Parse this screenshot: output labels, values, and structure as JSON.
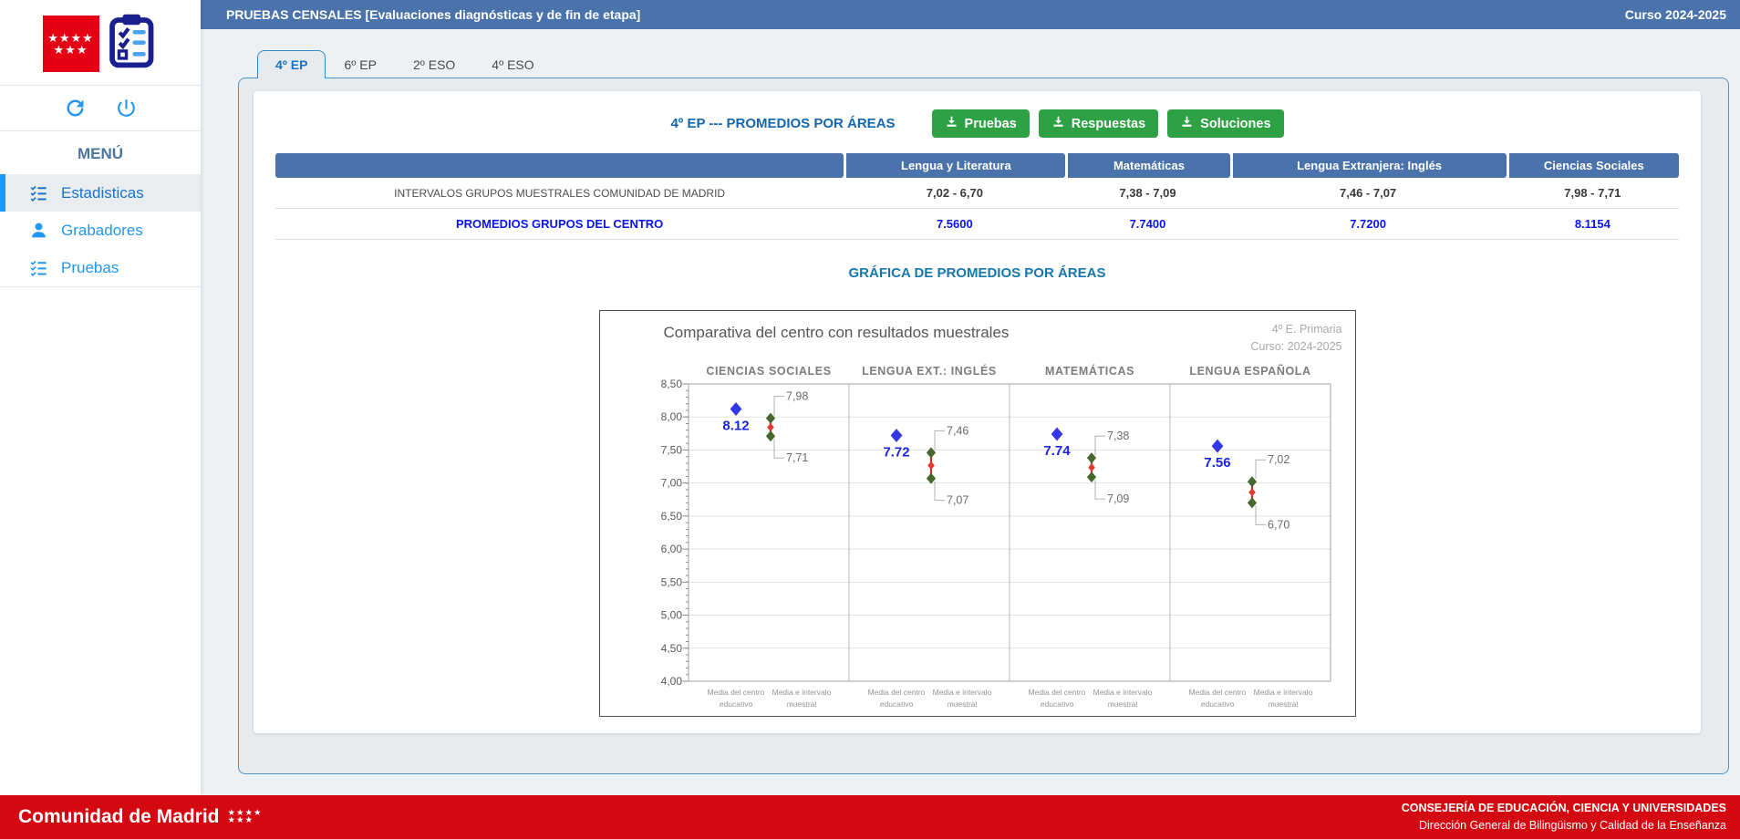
{
  "header": {
    "title": "PRUEBAS CENSALES [Evaluaciones diagnósticas y de fin de etapa]",
    "course": "Curso 2024-2025"
  },
  "sidebar": {
    "menu_header": "MENÚ",
    "items": [
      {
        "label": "Estadisticas",
        "icon": "checklist",
        "active": true
      },
      {
        "label": "Grabadores",
        "icon": "person",
        "active": false
      },
      {
        "label": "Pruebas",
        "icon": "checklist",
        "active": false
      }
    ]
  },
  "tabs": [
    {
      "label": "4º EP",
      "active": true
    },
    {
      "label": "6º EP",
      "active": false
    },
    {
      "label": "2º ESO",
      "active": false
    },
    {
      "label": "4º ESO",
      "active": false
    }
  ],
  "content": {
    "section_title": "4º EP --- PROMEDIOS POR ÁREAS",
    "buttons": [
      {
        "label": "Pruebas"
      },
      {
        "label": "Respuestas"
      },
      {
        "label": "Soluciones"
      }
    ],
    "table": {
      "columns": [
        "",
        "Lengua y Literatura",
        "Matemáticas",
        "Lengua Extranjera: Inglés",
        "Ciencias Sociales"
      ],
      "rows": [
        {
          "style": "plain",
          "label": "INTERVALOS GRUPOS MUESTRALES COMUNIDAD DE MADRID",
          "values": [
            "7,02 - 6,70",
            "7,38 - 7,09",
            "7,46 - 7,07",
            "7,98 - 7,71"
          ]
        },
        {
          "style": "blue",
          "label": "PROMEDIOS GRUPOS DEL CENTRO",
          "values": [
            "7.5600",
            "7.7400",
            "7.7200",
            "8.1154"
          ]
        }
      ]
    },
    "chart_heading": "GRÁFICA DE PROMEDIOS POR ÁREAS"
  },
  "chart_data": {
    "type": "scatter",
    "title": "Comparativa del centro con resultados muestrales",
    "corner_note": [
      "4º E. Primaria",
      "Curso: 2024-2025"
    ],
    "ylim": [
      4.0,
      8.5
    ],
    "ytick_step": 0.5,
    "yticks": [
      "8,50",
      "8,00",
      "7,50",
      "7,00",
      "6,50",
      "6,00",
      "5,50",
      "5,00",
      "4,50",
      "4,00"
    ],
    "x_series_labels": [
      [
        "Media del centro",
        "educativo"
      ],
      [
        "Media e intervalo",
        "muestral"
      ]
    ],
    "panels": [
      {
        "area": "CIENCIAS SOCIALES",
        "center_mean": 8.12,
        "center_label": "8.12",
        "interval_high": 7.98,
        "interval_high_label": "7,98",
        "interval_low": 7.71,
        "interval_low_label": "7,71"
      },
      {
        "area": "LENGUA EXT.: INGLÉS",
        "center_mean": 7.72,
        "center_label": "7.72",
        "interval_high": 7.46,
        "interval_high_label": "7,46",
        "interval_low": 7.07,
        "interval_low_label": "7,07"
      },
      {
        "area": "MATEMÁTICAS",
        "center_mean": 7.74,
        "center_label": "7.74",
        "interval_high": 7.38,
        "interval_high_label": "7,38",
        "interval_low": 7.09,
        "interval_low_label": "7,09"
      },
      {
        "area": "LENGUA ESPAÑOLA",
        "center_mean": 7.56,
        "center_label": "7.56",
        "interval_high": 7.02,
        "interval_high_label": "7,02",
        "interval_low": 6.7,
        "interval_low_label": "6,70"
      }
    ],
    "colors": {
      "center_point": "#3437e8",
      "center_label": "#1b24e2",
      "interval_bound": "#47682c",
      "interval_mean": "#e23a2e",
      "interval_line": "#b5352a",
      "leader_line": "#b0b0b0"
    },
    "grid": true,
    "legend_position": "none"
  },
  "footer": {
    "brand": "Comunidad de Madrid",
    "right_line1": "CONSEJERÍA DE EDUCACIÓN, CIENCIA Y UNIVERSIDADES",
    "right_line2": "Dirección General de Bilingüismo y Calidad de la Enseñanza"
  },
  "colors": {
    "header_bar_blue": "#4a73ab",
    "accent_blue": "#2196f3",
    "button_green": "#2da144",
    "footer_red": "#d40810",
    "value_blue": "#0a15ef"
  },
  "icons": {
    "madrid-flag-logo": "red square, 7 white stars",
    "clipboard-logo-icon": "clipboard with checklist",
    "refresh-icon": "circular arrow",
    "power-icon": "power symbol",
    "checklist-icon": "list with check marks",
    "person-icon": "user silhouette",
    "download-icon": "down arrow into tray"
  }
}
